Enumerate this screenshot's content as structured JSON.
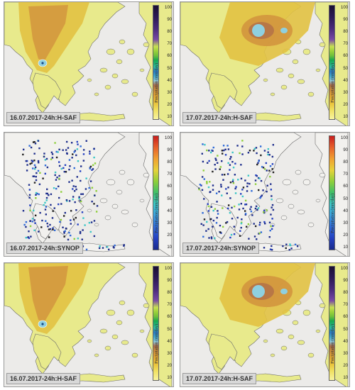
{
  "colorbar_title": "Precipitation (mm/day)",
  "colorbar_ticks": [
    100,
    90,
    80,
    70,
    60,
    50,
    40,
    30,
    20,
    10
  ],
  "panels": [
    {
      "label": "16.07.2017-24h:H-SAF",
      "source": "hsaf",
      "date": "16"
    },
    {
      "label": "17.07.2017-24h:H-SAF",
      "source": "hsaf",
      "date": "17"
    },
    {
      "label": "16.07.2017-24h:SYNOP",
      "source": "synop",
      "date": "16"
    },
    {
      "label": "17.07.2017-24h:SYNOP",
      "source": "synop",
      "date": "17"
    },
    {
      "label": "16.07.2017-24h:H-SAF",
      "source": "hsaf",
      "date": "16"
    },
    {
      "label": "17.07.2017-24h:H-SAF",
      "source": "hsaf",
      "date": "17"
    }
  ],
  "colors": {
    "hsaf_light": "#e8ea8c",
    "hsaf_yellow": "#e2c243",
    "hsaf_orange": "#d2953e",
    "hsaf_heavy": "#b57347",
    "hsaf_cyan": "#8fd0e0",
    "sea": "#ecebe9",
    "land_synop": "#f2f1ee",
    "station_blue": "#1e2e8c"
  }
}
